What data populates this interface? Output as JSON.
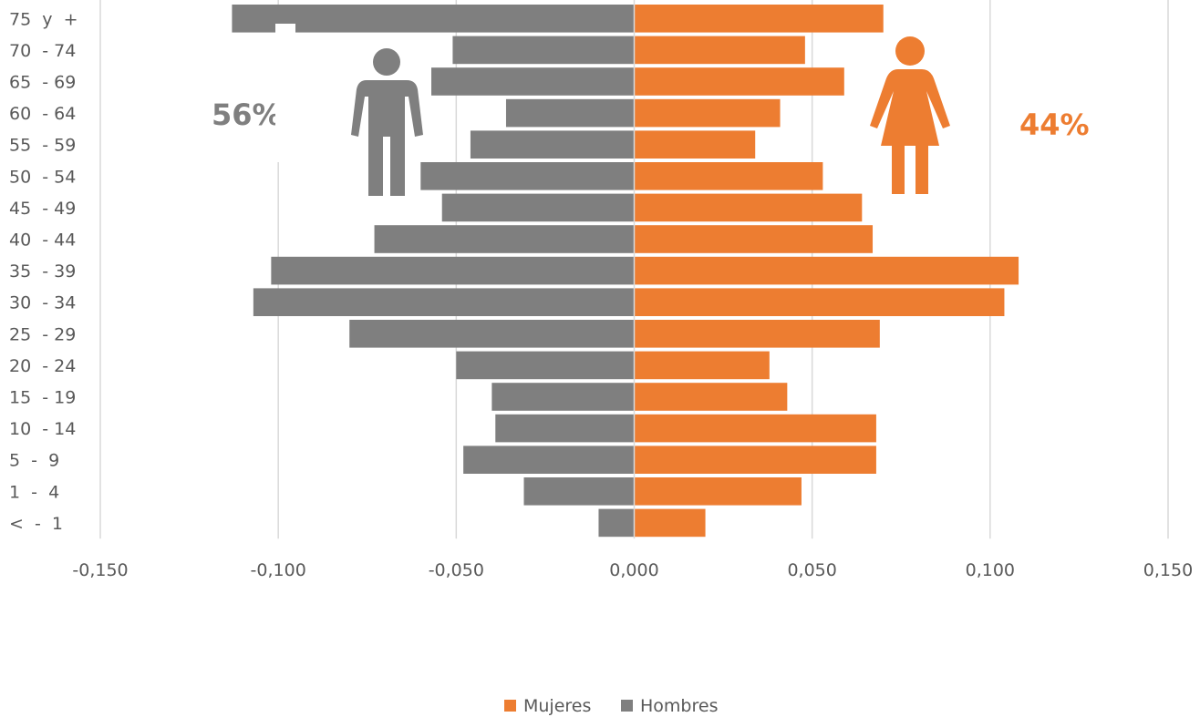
{
  "chart_data": {
    "type": "bar",
    "orientation": "horizontal",
    "categories": [
      "75  y  +",
      "70  - 74",
      "65  - 69",
      "60  - 64",
      "55  - 59",
      "50  - 54",
      "45  - 49",
      "40  - 44",
      "35  - 39",
      "30  - 34",
      "25  - 29",
      "20  - 24",
      "15  - 19",
      "10  - 14",
      "5  -  9",
      "1  -  4",
      "<  -  1"
    ],
    "series": [
      {
        "name": "Mujeres",
        "color": "#ED7D31",
        "values": [
          0.07,
          0.048,
          0.059,
          0.041,
          0.034,
          0.053,
          0.064,
          0.067,
          0.108,
          0.104,
          0.069,
          0.038,
          0.043,
          0.068,
          0.068,
          0.047,
          0.02
        ]
      },
      {
        "name": "Hombres",
        "color": "#7F7F7F",
        "values": [
          -0.113,
          -0.051,
          -0.057,
          -0.036,
          -0.046,
          -0.06,
          -0.054,
          -0.073,
          -0.102,
          -0.107,
          -0.08,
          -0.05,
          -0.04,
          -0.039,
          -0.048,
          -0.031,
          -0.01
        ]
      }
    ],
    "xlim": [
      -0.15,
      0.15
    ],
    "x_ticks": [
      "-0,150",
      "-0,100",
      "-0,050",
      "0,000",
      "0,050",
      "0,100",
      "0,150"
    ],
    "grid": "vertical",
    "legend_position": "bottom-center",
    "annotations": {
      "men_percent": "56%",
      "women_percent": "44%",
      "men_icon": "male-person-icon",
      "women_icon": "female-person-icon"
    }
  }
}
